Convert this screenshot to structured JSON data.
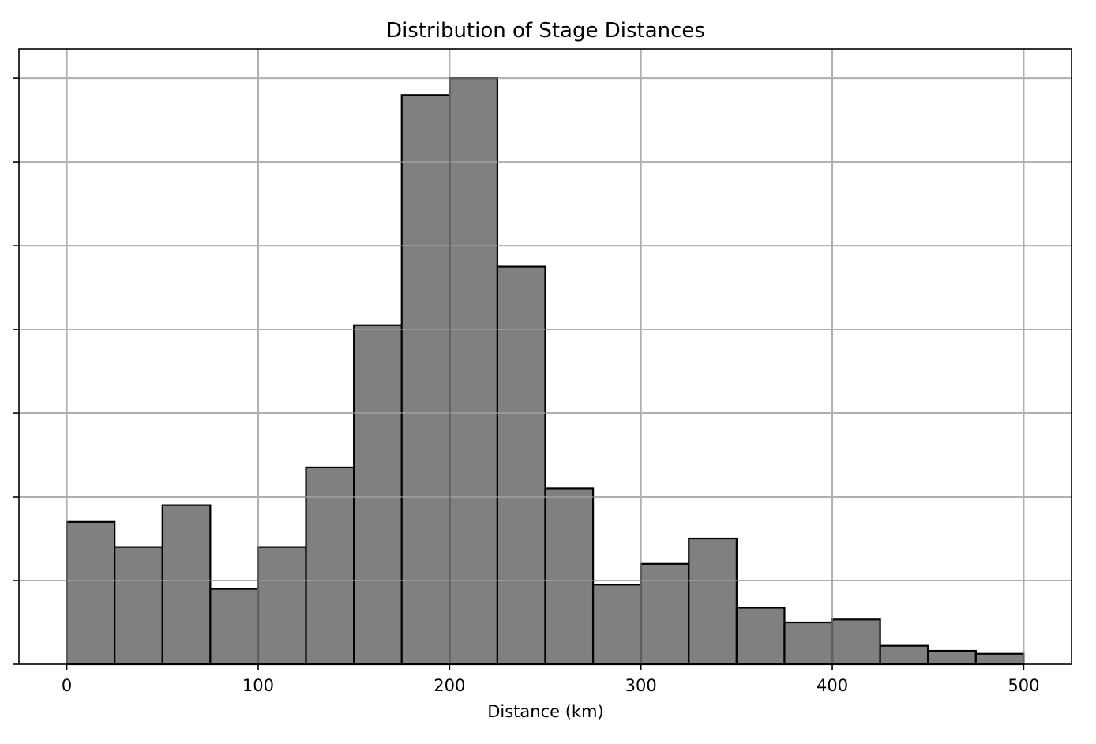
{
  "chart_data": {
    "type": "bar",
    "title": "Distribution of Stage Distances",
    "xlabel": "Distance (km)",
    "ylabel": "",
    "bin_width": 25,
    "bin_starts": [
      0,
      25,
      50,
      75,
      100,
      125,
      150,
      175,
      200,
      225,
      250,
      275,
      300,
      325,
      350,
      375,
      400,
      425,
      450,
      475
    ],
    "values": [
      34,
      28,
      38,
      18,
      28,
      47,
      81,
      136,
      140,
      95,
      42,
      19,
      24,
      30,
      13.5,
      10,
      10.7,
      4.4,
      3.2,
      2.5
    ],
    "xlim": [
      -25,
      525
    ],
    "ylim": [
      0,
      147
    ],
    "x_ticks": [
      0,
      100,
      200,
      300,
      400,
      500
    ],
    "x_tick_labels": [
      "0",
      "100",
      "200",
      "300",
      "400",
      "500"
    ],
    "y_ticks": [
      0,
      20,
      40,
      60,
      80,
      100,
      120,
      140
    ],
    "y_tick_labels_visible": false,
    "grid": true,
    "bar_color": "#808080",
    "edge_color": "#000000",
    "grid_color": "#b0b0b0"
  }
}
